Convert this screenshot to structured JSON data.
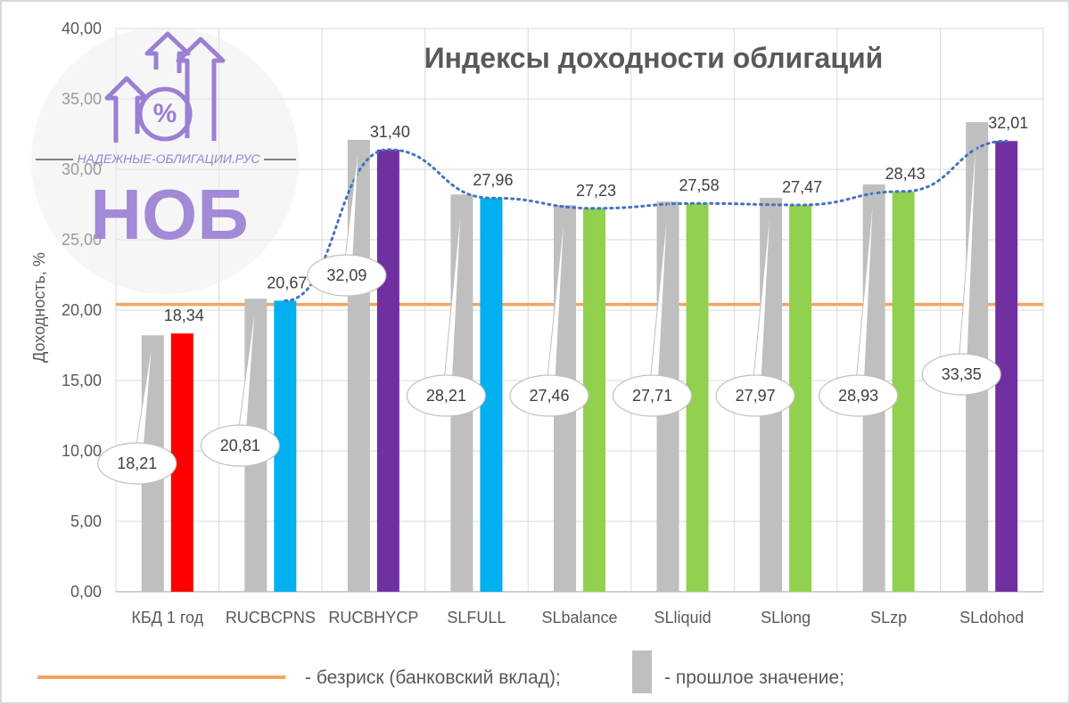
{
  "chart_data": {
    "type": "bar",
    "title": "Индексы доходности облигаций",
    "ylabel": "Доходность, %",
    "xlabel": "",
    "ylim": [
      0,
      40
    ],
    "yticks": [
      "0,00",
      "5,00",
      "10,00",
      "15,00",
      "20,00",
      "25,00",
      "30,00",
      "35,00",
      "40,00"
    ],
    "grid": true,
    "categories": [
      "КБД 1 год",
      "RUCBCPNS",
      "RUCBHYCP",
      "SLFULL",
      "SLbalance",
      "SLliquid",
      "SLlong",
      "SLzp",
      "SLdohod"
    ],
    "series": [
      {
        "name": "- прошлое значение;",
        "values": [
          18.21,
          20.81,
          32.09,
          28.21,
          27.46,
          27.71,
          27.97,
          28.93,
          33.35
        ],
        "labels": [
          "18,21",
          "20,81",
          "32,09",
          "28,21",
          "27,46",
          "27,71",
          "27,97",
          "28,93",
          "33,35"
        ],
        "color": "#bfbfbf"
      },
      {
        "name": "",
        "values": [
          18.34,
          20.67,
          31.4,
          27.96,
          27.23,
          27.58,
          27.47,
          28.43,
          32.01
        ],
        "labels": [
          "18,34",
          "20,67",
          "31,40",
          "27,96",
          "27,23",
          "27,58",
          "27,47",
          "28,43",
          "32,01"
        ],
        "colors": [
          "#ff0000",
          "#00b0f0",
          "#7030a0",
          "#00b0f0",
          "#92d050",
          "#92d050",
          "#92d050",
          "#92d050",
          "#7030a0"
        ]
      }
    ],
    "reference_line": {
      "name": "- безриск (банковский вклад);",
      "value": 20.4,
      "color": "#f4a460"
    },
    "trend_line": {
      "style": "dotted",
      "color": "#4472c4"
    },
    "legend": {
      "placement": "bottom"
    }
  },
  "logo": {
    "site": "НАДЕЖНЫЕ-ОБЛИГАЦИИ.РУС",
    "abbr": "НОБ",
    "color": "#9b7fd4"
  }
}
